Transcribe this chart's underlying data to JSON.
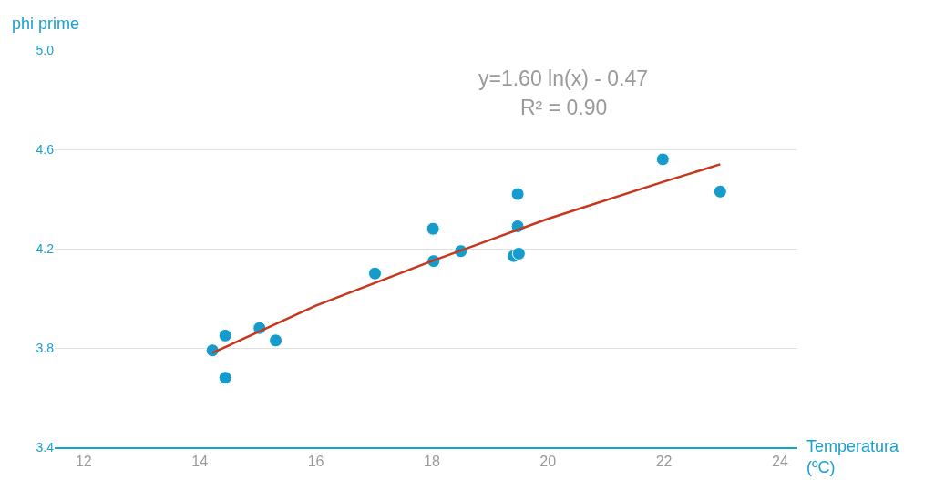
{
  "chart_data": {
    "type": "scatter",
    "xlabel": "Temperatura (ºC)",
    "ylabel": "phi prime",
    "annotations": [
      "y=1.60 ln(x) - 0.47",
      "R² = 0.90"
    ],
    "xlim": [
      11.5,
      24.3
    ],
    "xticks": [
      12,
      14,
      16,
      18,
      20,
      22,
      24
    ],
    "ylim": [
      3.4,
      5.0
    ],
    "yticks": [
      {
        "value": 3.4,
        "label": "3.4"
      },
      {
        "value": 3.8,
        "label": "3.8"
      },
      {
        "value": 4.2,
        "label": "4.2"
      },
      {
        "value": 4.6,
        "label": "4.6"
      },
      {
        "value": 5.0,
        "label": "5.0"
      }
    ],
    "grid": "y",
    "legend": false,
    "marker": "circle",
    "series": [
      {
        "color": "#169ccc",
        "x": [
          14.22,
          14.44,
          14.44,
          15.03,
          15.31,
          17.02,
          18.02,
          18.03,
          18.5,
          19.41,
          19.5,
          19.48,
          19.48,
          21.98,
          22.97
        ],
        "values": [
          3.79,
          3.85,
          3.68,
          3.88,
          3.83,
          4.1,
          4.28,
          4.15,
          4.19,
          4.17,
          4.18,
          4.29,
          4.42,
          4.56,
          4.43
        ]
      },
      {
        "type": "line",
        "color": "#c8361c",
        "marker": "none",
        "x": [
          14.22,
          16,
          18,
          20,
          22,
          22.97
        ],
        "values": [
          3.78,
          3.97,
          4.15,
          4.32,
          4.47,
          4.54
        ]
      }
    ]
  }
}
